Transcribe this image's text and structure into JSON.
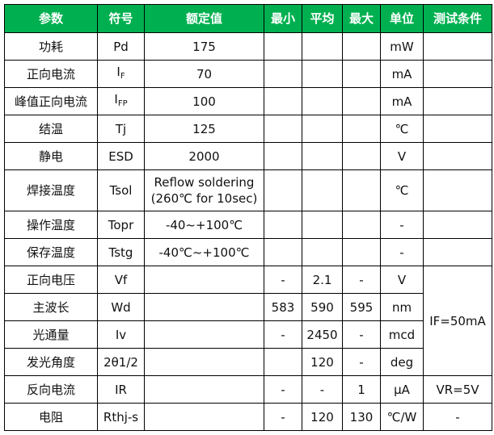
{
  "header_color": "#00b050",
  "headers": [
    "参数",
    "符号",
    "额定值",
    "最小",
    "平均",
    "最大",
    "单位",
    "测试条件"
  ],
  "rows": [
    {
      "param": "功耗",
      "symbol": "Pd",
      "rated": "175",
      "min": "",
      "avg": "",
      "max": "",
      "unit": "mW",
      "cond": ""
    },
    {
      "param": "正向电流",
      "symbol": "I",
      "symbol_sub": "F",
      "rated": "70",
      "min": "",
      "avg": "",
      "max": "",
      "unit": "mA",
      "cond": ""
    },
    {
      "param": "峰值正向电流",
      "symbol": "I",
      "symbol_sub": "FP",
      "rated": "100",
      "min": "",
      "avg": "",
      "max": "",
      "unit": "mA",
      "cond": ""
    },
    {
      "param": "结温",
      "symbol": "Tj",
      "rated": "125",
      "min": "",
      "avg": "",
      "max": "",
      "unit": "℃",
      "cond": ""
    },
    {
      "param": "静电",
      "symbol": "ESD",
      "rated": "2000",
      "min": "",
      "avg": "",
      "max": "",
      "unit": "V",
      "cond": ""
    },
    {
      "param": "焊接温度",
      "symbol": "Tsol",
      "rated": "Reflow soldering",
      "rated2": "(260℃ for 10sec)",
      "min": "",
      "avg": "",
      "max": "",
      "unit": "℃",
      "cond": ""
    },
    {
      "param": "操作温度",
      "symbol": "Topr",
      "rated": "-40~+100℃",
      "min": "",
      "avg": "",
      "max": "",
      "unit": "-",
      "cond": ""
    },
    {
      "param": "保存温度",
      "symbol": "Tstg",
      "rated": "-40℃~+100℃",
      "min": "",
      "avg": "",
      "max": "",
      "unit": "-",
      "cond": ""
    },
    {
      "param": "正向电压",
      "symbol": "Vf",
      "rated": "",
      "min": "-",
      "avg": "2.1",
      "max": "-",
      "unit": "V",
      "cond": "IF=50mA"
    },
    {
      "param": "主波长",
      "symbol": "Wd",
      "rated": "",
      "min": "583",
      "avg": "590",
      "max": "595",
      "unit": "nm"
    },
    {
      "param": "光通量",
      "symbol": "Iv",
      "rated": "",
      "min": "-",
      "avg": "2450",
      "max": "-",
      "unit": "mcd"
    },
    {
      "param": "发光角度",
      "symbol": "2θ1/2",
      "rated": "",
      "min": "",
      "avg": "120",
      "max": "-",
      "unit": "deg"
    },
    {
      "param": "反向电流",
      "symbol": "IR",
      "rated": "",
      "min": "-",
      "avg": "-",
      "max": "1",
      "unit": "μA",
      "cond": "VR=5V"
    },
    {
      "param": "电阻",
      "symbol": "Rthj-s",
      "rated": "",
      "min": "-",
      "avg": "120",
      "max": "130",
      "unit": "℃/W",
      "cond": "-"
    }
  ]
}
